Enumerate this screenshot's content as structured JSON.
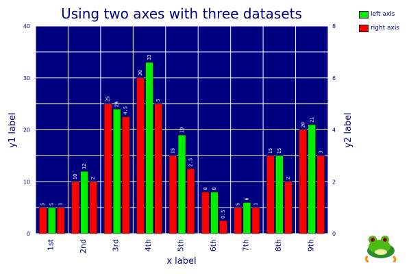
{
  "chart_data": {
    "type": "bar",
    "title": "Using two axes with three datasets",
    "xlabel": "x label",
    "ylabel": "y1 label",
    "y2label": "y2 label",
    "categories": [
      "1st",
      "2nd",
      "3rd",
      "4th",
      "5th",
      "6th",
      "7th",
      "8th",
      "9th"
    ],
    "ylim": [
      0,
      40
    ],
    "y2lim": [
      0,
      8
    ],
    "yticks": [
      "0",
      "10",
      "20",
      "30",
      "40"
    ],
    "y2ticks": [
      "0",
      "2",
      "4",
      "6",
      "8"
    ],
    "grid": true,
    "legend_position": "top-right",
    "series": [
      {
        "name": "",
        "axis": "left",
        "color": "#ff0000",
        "values": [
          5,
          10,
          25,
          30,
          15,
          8,
          5,
          15,
          20
        ],
        "labels": [
          "5",
          "10",
          "25",
          "30",
          "15",
          "8",
          "5",
          "15",
          "20"
        ]
      },
      {
        "name": "left axis",
        "axis": "left",
        "color": "#00ee00",
        "values": [
          5,
          12,
          24,
          33,
          19,
          8,
          6,
          15,
          21
        ],
        "labels": [
          "5",
          "12",
          "24",
          "33",
          "19",
          "8",
          "6",
          "15",
          "21"
        ]
      },
      {
        "name": "right axis",
        "axis": "right",
        "color": "#ff0000",
        "values": [
          1,
          2,
          4.5,
          5,
          2.5,
          0.5,
          1,
          2,
          3
        ],
        "labels": [
          "1",
          "2",
          "4.5",
          "5",
          "2.5",
          "0.5",
          "1",
          "2",
          "3"
        ]
      }
    ],
    "background_color": "#000080",
    "grid_color": "#ffffff",
    "text_color": "#000080"
  },
  "legend": {
    "items": [
      {
        "label": "left axis",
        "color": "#00ee00"
      },
      {
        "label": "right axis",
        "color": "#ff0000"
      }
    ]
  },
  "logo": {
    "icon": "frog-icon"
  }
}
